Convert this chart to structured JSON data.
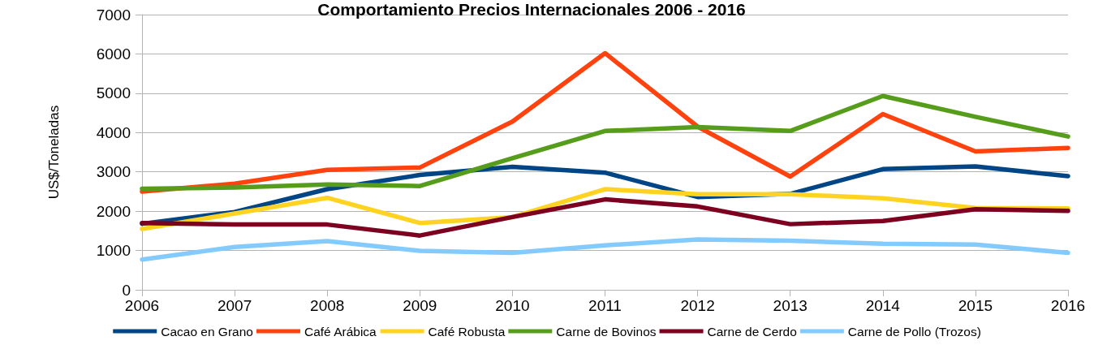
{
  "chart_data": {
    "type": "line",
    "title": "Comportamiento Precios Internacionales 2006 - 2016",
    "ylabel": "US$/Toneladas",
    "x": [
      2006,
      2007,
      2008,
      2009,
      2010,
      2011,
      2012,
      2013,
      2014,
      2015,
      2016
    ],
    "xlim": [
      2006,
      2016
    ],
    "xticks": [
      2006,
      2007,
      2008,
      2009,
      2010,
      2011,
      2012,
      2013,
      2014,
      2015,
      2016
    ],
    "ylim": [
      0,
      7000
    ],
    "yticks": [
      0,
      1000,
      2000,
      3000,
      4000,
      5000,
      6000,
      7000
    ],
    "grid": "y",
    "legend": "bottom",
    "marker": "none",
    "line_style": "solid",
    "series": [
      {
        "name": "Cacao en Grano",
        "color": "#004586",
        "values": [
          1680,
          1980,
          2560,
          2920,
          3130,
          2980,
          2360,
          2440,
          3070,
          3140,
          2890
        ]
      },
      {
        "name": "Café Arábica",
        "color": "#ff420e",
        "values": [
          2500,
          2700,
          3050,
          3110,
          4280,
          6020,
          4150,
          2880,
          4470,
          3520,
          3610
        ]
      },
      {
        "name": "Café Robusta",
        "color": "#ffd320",
        "values": [
          1550,
          1940,
          2340,
          1700,
          1850,
          2560,
          2430,
          2430,
          2330,
          2080,
          2070
        ]
      },
      {
        "name": "Carne de Bovinos",
        "color": "#579d1c",
        "values": [
          2570,
          2600,
          2680,
          2640,
          3350,
          4040,
          4140,
          4040,
          4930,
          4400,
          3900
        ]
      },
      {
        "name": "Carne de Cerdo",
        "color": "#7e0021",
        "values": [
          1700,
          1660,
          1660,
          1380,
          1850,
          2300,
          2120,
          1670,
          1750,
          2050,
          2010
        ]
      },
      {
        "name": "Carne de Pollo (Trozos)",
        "color": "#83caff",
        "values": [
          770,
          1090,
          1240,
          990,
          940,
          1130,
          1280,
          1250,
          1170,
          1150,
          940
        ]
      }
    ]
  }
}
